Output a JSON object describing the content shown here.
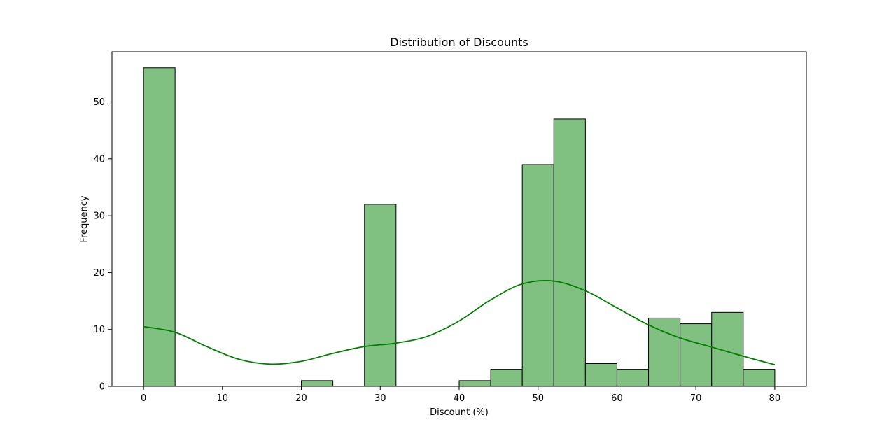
{
  "chart_data": {
    "type": "bar",
    "title": "Distribution of Discounts",
    "xlabel": "Discount (%)",
    "ylabel": "Frequency",
    "xlim": [
      -4,
      84
    ],
    "ylim": [
      0,
      58.8
    ],
    "xticks": [
      0,
      10,
      20,
      30,
      40,
      50,
      60,
      70,
      80
    ],
    "yticks": [
      0,
      10,
      20,
      30,
      40,
      50
    ],
    "bin_width": 4,
    "bins": [
      {
        "start": 0,
        "count": 56
      },
      {
        "start": 4,
        "count": 0
      },
      {
        "start": 8,
        "count": 0
      },
      {
        "start": 12,
        "count": 0
      },
      {
        "start": 16,
        "count": 0
      },
      {
        "start": 20,
        "count": 1
      },
      {
        "start": 24,
        "count": 0
      },
      {
        "start": 28,
        "count": 32
      },
      {
        "start": 32,
        "count": 0
      },
      {
        "start": 36,
        "count": 0
      },
      {
        "start": 40,
        "count": 1
      },
      {
        "start": 44,
        "count": 3
      },
      {
        "start": 48,
        "count": 39
      },
      {
        "start": 52,
        "count": 47
      },
      {
        "start": 56,
        "count": 4
      },
      {
        "start": 60,
        "count": 3
      },
      {
        "start": 64,
        "count": 12
      },
      {
        "start": 68,
        "count": 11
      },
      {
        "start": 72,
        "count": 13
      },
      {
        "start": 76,
        "count": 3
      }
    ],
    "kde": {
      "x": [
        0,
        4,
        8,
        12,
        16,
        20,
        24,
        28,
        32,
        36,
        40,
        44,
        48,
        52,
        56,
        60,
        64,
        68,
        72,
        76,
        80
      ],
      "y": [
        10.5,
        9.5,
        7.0,
        4.8,
        3.9,
        4.4,
        5.8,
        7.0,
        7.6,
        8.8,
        11.5,
        15.2,
        18.0,
        18.5,
        16.8,
        13.8,
        10.8,
        8.5,
        6.9,
        5.3,
        3.8
      ]
    },
    "grid": false,
    "colors": {
      "bar_fill": "#80c080",
      "bar_edge": "#000000",
      "kde_line": "#008000"
    }
  }
}
